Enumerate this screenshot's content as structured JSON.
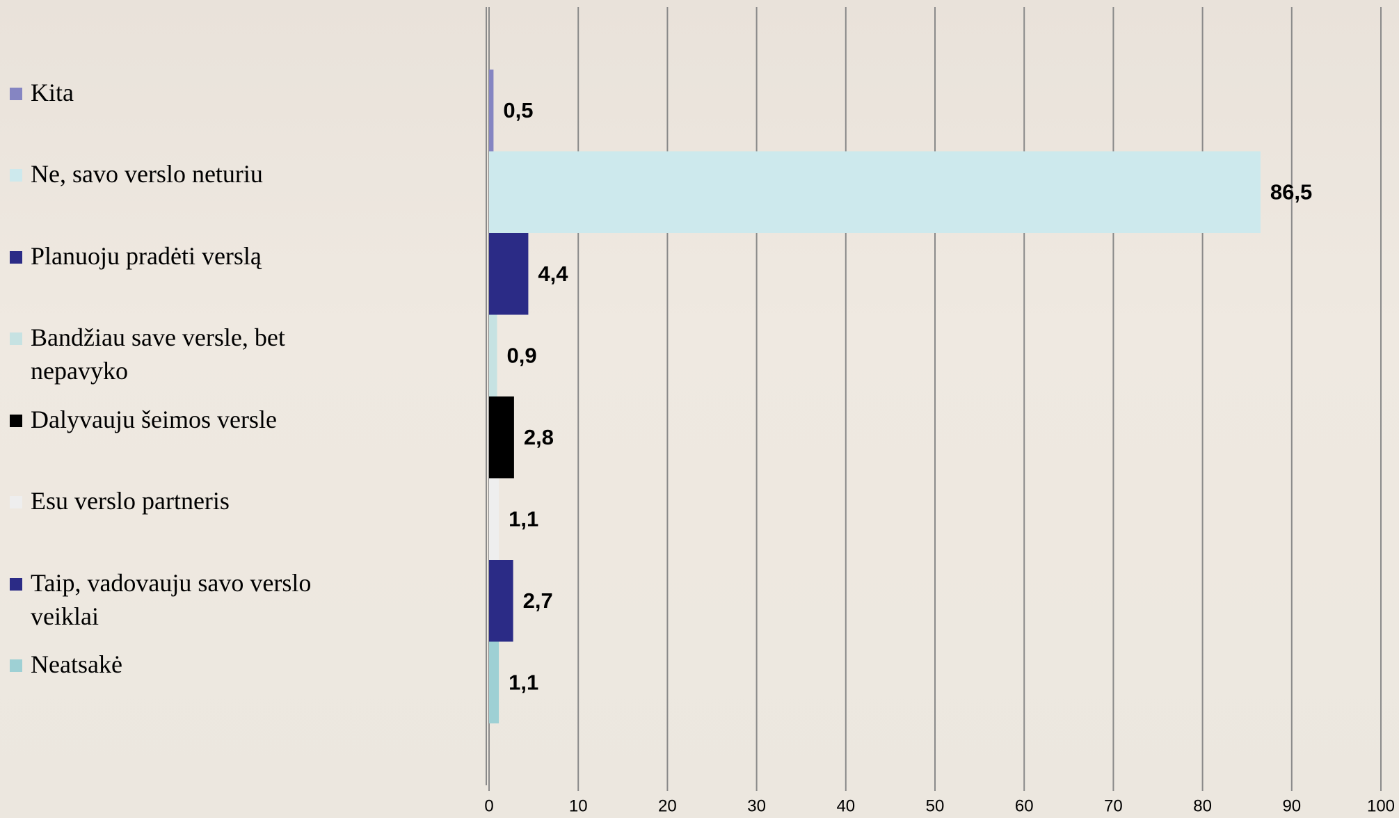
{
  "chart_data": {
    "type": "bar",
    "orientation": "horizontal",
    "categories": [
      "Kita",
      "Ne, savo verslo neturiu",
      "Planuoju pradėti verslą",
      "Bandžiau save versle, bet nepavyko",
      "Dalyvauju šeimos versle",
      "Esu verslo partneris",
      "Taip, vadovauju savo verslo veiklai",
      "Neatsakė"
    ],
    "values": [
      0.5,
      86.5,
      4.4,
      0.9,
      2.8,
      1.1,
      2.7,
      1.1
    ],
    "value_labels": [
      "0,5",
      "86,5",
      "4,4",
      "0,9",
      "2,8",
      "1,1",
      "2,7",
      "1,1"
    ],
    "colors": [
      "#8585c2",
      "#cde9ed",
      "#2b2b86",
      "#c6e2e2",
      "#000000",
      "#eeeeee",
      "#2b2b86",
      "#9ed0d4"
    ],
    "xlim": [
      0,
      100
    ],
    "xticks": [
      0,
      10,
      20,
      30,
      40,
      50,
      60,
      70,
      80,
      90,
      100
    ],
    "grid": true
  }
}
